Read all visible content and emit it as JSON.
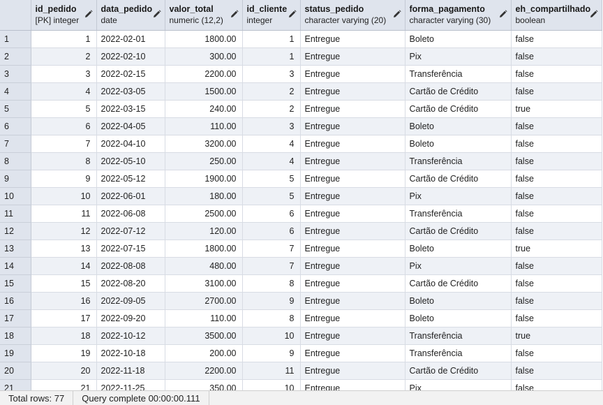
{
  "columns": [
    {
      "name": "id_pedido",
      "type": "[PK] integer",
      "align": "num"
    },
    {
      "name": "data_pedido",
      "type": "date",
      "align": "txt"
    },
    {
      "name": "valor_total",
      "type": "numeric (12,2)",
      "align": "num"
    },
    {
      "name": "id_cliente",
      "type": "integer",
      "align": "num"
    },
    {
      "name": "status_pedido",
      "type": "character varying (20)",
      "align": "txt"
    },
    {
      "name": "forma_pagamento",
      "type": "character varying (30)",
      "align": "txt"
    },
    {
      "name": "eh_compartilhado",
      "type": "boolean",
      "align": "txt"
    }
  ],
  "rows": [
    {
      "n": "1",
      "cells": [
        "1",
        "2022-02-01",
        "1800.00",
        "1",
        "Entregue",
        "Boleto",
        "false"
      ]
    },
    {
      "n": "2",
      "cells": [
        "2",
        "2022-02-10",
        "300.00",
        "1",
        "Entregue",
        "Pix",
        "false"
      ]
    },
    {
      "n": "3",
      "cells": [
        "3",
        "2022-02-15",
        "2200.00",
        "3",
        "Entregue",
        "Transferência",
        "false"
      ]
    },
    {
      "n": "4",
      "cells": [
        "4",
        "2022-03-05",
        "1500.00",
        "2",
        "Entregue",
        "Cartão de Crédito",
        "false"
      ]
    },
    {
      "n": "5",
      "cells": [
        "5",
        "2022-03-15",
        "240.00",
        "2",
        "Entregue",
        "Cartão de Crédito",
        "true"
      ]
    },
    {
      "n": "6",
      "cells": [
        "6",
        "2022-04-05",
        "110.00",
        "3",
        "Entregue",
        "Boleto",
        "false"
      ]
    },
    {
      "n": "7",
      "cells": [
        "7",
        "2022-04-10",
        "3200.00",
        "4",
        "Entregue",
        "Boleto",
        "false"
      ]
    },
    {
      "n": "8",
      "cells": [
        "8",
        "2022-05-10",
        "250.00",
        "4",
        "Entregue",
        "Transferência",
        "false"
      ]
    },
    {
      "n": "9",
      "cells": [
        "9",
        "2022-05-12",
        "1900.00",
        "5",
        "Entregue",
        "Cartão de Crédito",
        "false"
      ]
    },
    {
      "n": "10",
      "cells": [
        "10",
        "2022-06-01",
        "180.00",
        "5",
        "Entregue",
        "Pix",
        "false"
      ]
    },
    {
      "n": "11",
      "cells": [
        "11",
        "2022-06-08",
        "2500.00",
        "6",
        "Entregue",
        "Transferência",
        "false"
      ]
    },
    {
      "n": "12",
      "cells": [
        "12",
        "2022-07-12",
        "120.00",
        "6",
        "Entregue",
        "Cartão de Crédito",
        "false"
      ]
    },
    {
      "n": "13",
      "cells": [
        "13",
        "2022-07-15",
        "1800.00",
        "7",
        "Entregue",
        "Boleto",
        "true"
      ]
    },
    {
      "n": "14",
      "cells": [
        "14",
        "2022-08-08",
        "480.00",
        "7",
        "Entregue",
        "Pix",
        "false"
      ]
    },
    {
      "n": "15",
      "cells": [
        "15",
        "2022-08-20",
        "3100.00",
        "8",
        "Entregue",
        "Cartão de Crédito",
        "false"
      ]
    },
    {
      "n": "16",
      "cells": [
        "16",
        "2022-09-05",
        "2700.00",
        "9",
        "Entregue",
        "Boleto",
        "false"
      ]
    },
    {
      "n": "17",
      "cells": [
        "17",
        "2022-09-20",
        "110.00",
        "8",
        "Entregue",
        "Boleto",
        "false"
      ]
    },
    {
      "n": "18",
      "cells": [
        "18",
        "2022-10-12",
        "3500.00",
        "10",
        "Entregue",
        "Transferência",
        "true"
      ]
    },
    {
      "n": "19",
      "cells": [
        "19",
        "2022-10-18",
        "200.00",
        "9",
        "Entregue",
        "Transferência",
        "false"
      ]
    },
    {
      "n": "20",
      "cells": [
        "20",
        "2022-11-18",
        "2200.00",
        "11",
        "Entregue",
        "Cartão de Crédito",
        "false"
      ]
    },
    {
      "n": "21",
      "cells": [
        "21",
        "2022-11-25",
        "350.00",
        "10",
        "Entregue",
        "Pix",
        "false"
      ]
    }
  ],
  "icons": {
    "column_edit": "pencil-icon"
  },
  "status": {
    "total_rows": "Total rows: 77",
    "query": "Query complete 00:00:00.111"
  }
}
